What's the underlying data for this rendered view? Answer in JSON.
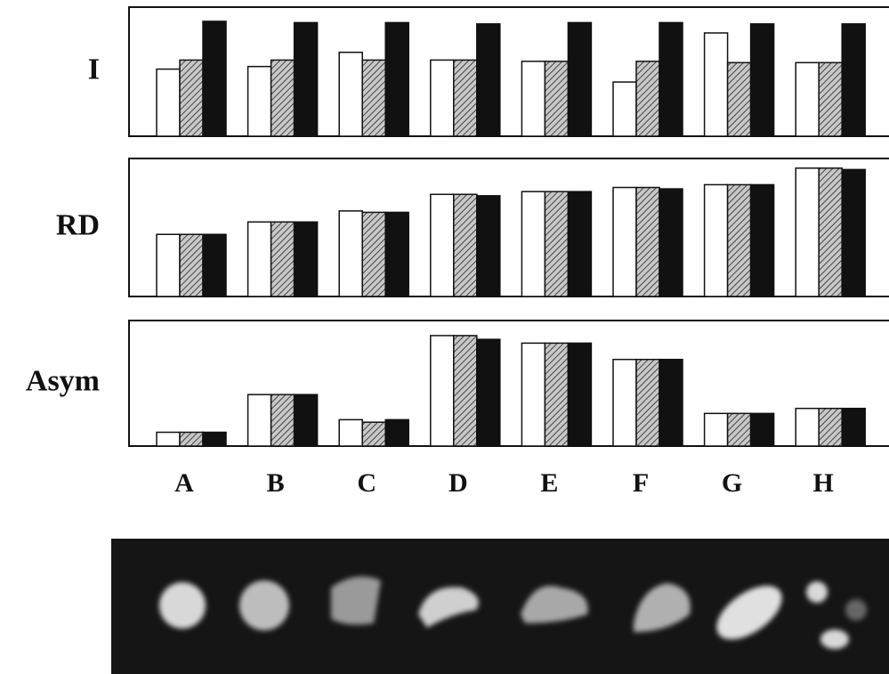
{
  "chart_data": [
    {
      "type": "bar",
      "ylabel": "I",
      "ylim": [
        0,
        100
      ],
      "series": [
        {
          "color": "#ffffff",
          "values": [
            52,
            54,
            65,
            59,
            58,
            42,
            80,
            57
          ]
        },
        {
          "color": "#8a8a8a",
          "hatch": true,
          "values": [
            59,
            59,
            59,
            59,
            58,
            58,
            57,
            57
          ]
        },
        {
          "color": "#111111",
          "values": [
            89,
            88,
            88,
            87,
            88,
            88,
            87,
            87
          ]
        }
      ]
    },
    {
      "type": "bar",
      "ylabel": "RD",
      "ylim": [
        0,
        100
      ],
      "series": [
        {
          "color": "#ffffff",
          "values": [
            45,
            54,
            62,
            74,
            76,
            79,
            81,
            93
          ]
        },
        {
          "color": "#8a8a8a",
          "hatch": true,
          "values": [
            45,
            54,
            61,
            74,
            76,
            79,
            81,
            93
          ]
        },
        {
          "color": "#111111",
          "values": [
            45,
            54,
            61,
            73,
            76,
            78,
            81,
            92
          ]
        }
      ]
    },
    {
      "type": "bar",
      "ylabel": "Asym",
      "ylim": [
        0,
        100
      ],
      "categories": [
        "A",
        "B",
        "C",
        "D",
        "E",
        "F",
        "G",
        "H"
      ],
      "series": [
        {
          "color": "#ffffff",
          "values": [
            11,
            41,
            21,
            88,
            82,
            69,
            26,
            30
          ]
        },
        {
          "color": "#8a8a8a",
          "hatch": true,
          "values": [
            11,
            41,
            19,
            88,
            82,
            69,
            26,
            30
          ]
        },
        {
          "color": "#111111",
          "values": [
            11,
            41,
            21,
            85,
            82,
            69,
            26,
            30
          ]
        }
      ]
    }
  ]
}
